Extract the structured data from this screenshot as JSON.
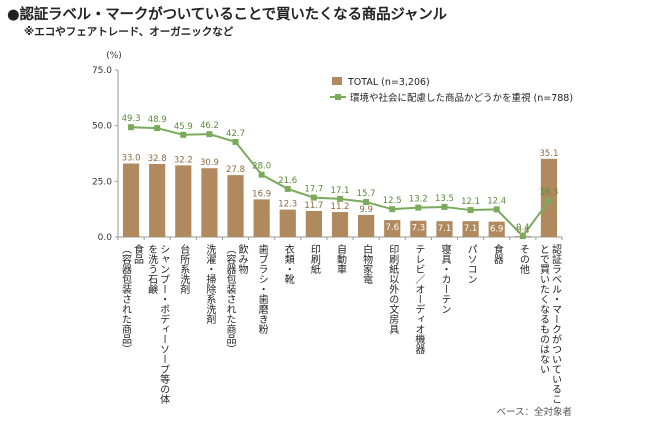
{
  "title": "●認証ラベル・マークがついていることで買いたくなる商品ジャンル",
  "subtitle": "※エコやフェアトレード、オーガニックなど",
  "note": "ベース：全対象者",
  "colors": {
    "bar": "#b08a5e",
    "line": "#7aaa5c",
    "bar_label": "#8a6a42",
    "line_label": "#5a8a3a"
  },
  "chart_data": {
    "type": "bar",
    "unit_label": "(%)",
    "ylim": [
      0,
      75
    ],
    "yticks": [
      "0.0",
      "25.0",
      "50.0",
      "75.0"
    ],
    "grid": false,
    "legend_position": "top-right",
    "categories": [
      [
        "食品",
        "（容器包装された商品）"
      ],
      [
        "シャンプー・ボディーソープ等の体",
        "を洗う石鹸"
      ],
      [
        "台所系洗剤"
      ],
      [
        "洗濯・掃除系洗剤"
      ],
      [
        "飲み物",
        "（容器包装された商品）"
      ],
      [
        "歯ブラシ・歯磨き粉"
      ],
      [
        "衣類・靴"
      ],
      [
        "印刷紙"
      ],
      [
        "自動車"
      ],
      [
        "白物家電"
      ],
      [
        "印刷紙以外の文房具"
      ],
      [
        "テレビ／オーディオ機器"
      ],
      [
        "寝具・カーテン"
      ],
      [
        "パソコン"
      ],
      [
        "食器"
      ],
      [
        "その他"
      ],
      [
        "認証ラベル・マークがついているこ",
        "とで買いたくなるものはない"
      ]
    ],
    "series": [
      {
        "name": "TOTAL (n=3,206)",
        "kind": "bar",
        "values": [
          33.0,
          32.8,
          32.2,
          30.9,
          27.8,
          16.9,
          12.3,
          11.7,
          11.2,
          9.9,
          7.6,
          7.3,
          7.1,
          7.1,
          6.9,
          0.4,
          35.1
        ],
        "labels": [
          "33.0",
          "32.8",
          "32.2",
          "30.9",
          "27.8",
          "16.9",
          "12.3",
          "11.7",
          "11.2",
          "9.9",
          "7.6",
          "7.3",
          "7.1",
          "7.1",
          "6.9",
          "0.4",
          "35.1"
        ]
      },
      {
        "name": "環境や社会に配慮した商品かどうかを重視 (n=788)",
        "kind": "line",
        "values": [
          49.3,
          48.9,
          45.9,
          46.2,
          42.7,
          28.0,
          21.6,
          17.7,
          17.1,
          15.7,
          12.5,
          13.2,
          13.5,
          12.1,
          12.4,
          0.4,
          16.3
        ],
        "labels": [
          "49.3",
          "48.9",
          "45.9",
          "46.2",
          "42.7",
          "28.0",
          "21.6",
          "17.7",
          "17.1",
          "15.7",
          "12.5",
          "13.2",
          "13.5",
          "12.1",
          "12.4",
          "0.4",
          "16.3"
        ]
      }
    ]
  }
}
